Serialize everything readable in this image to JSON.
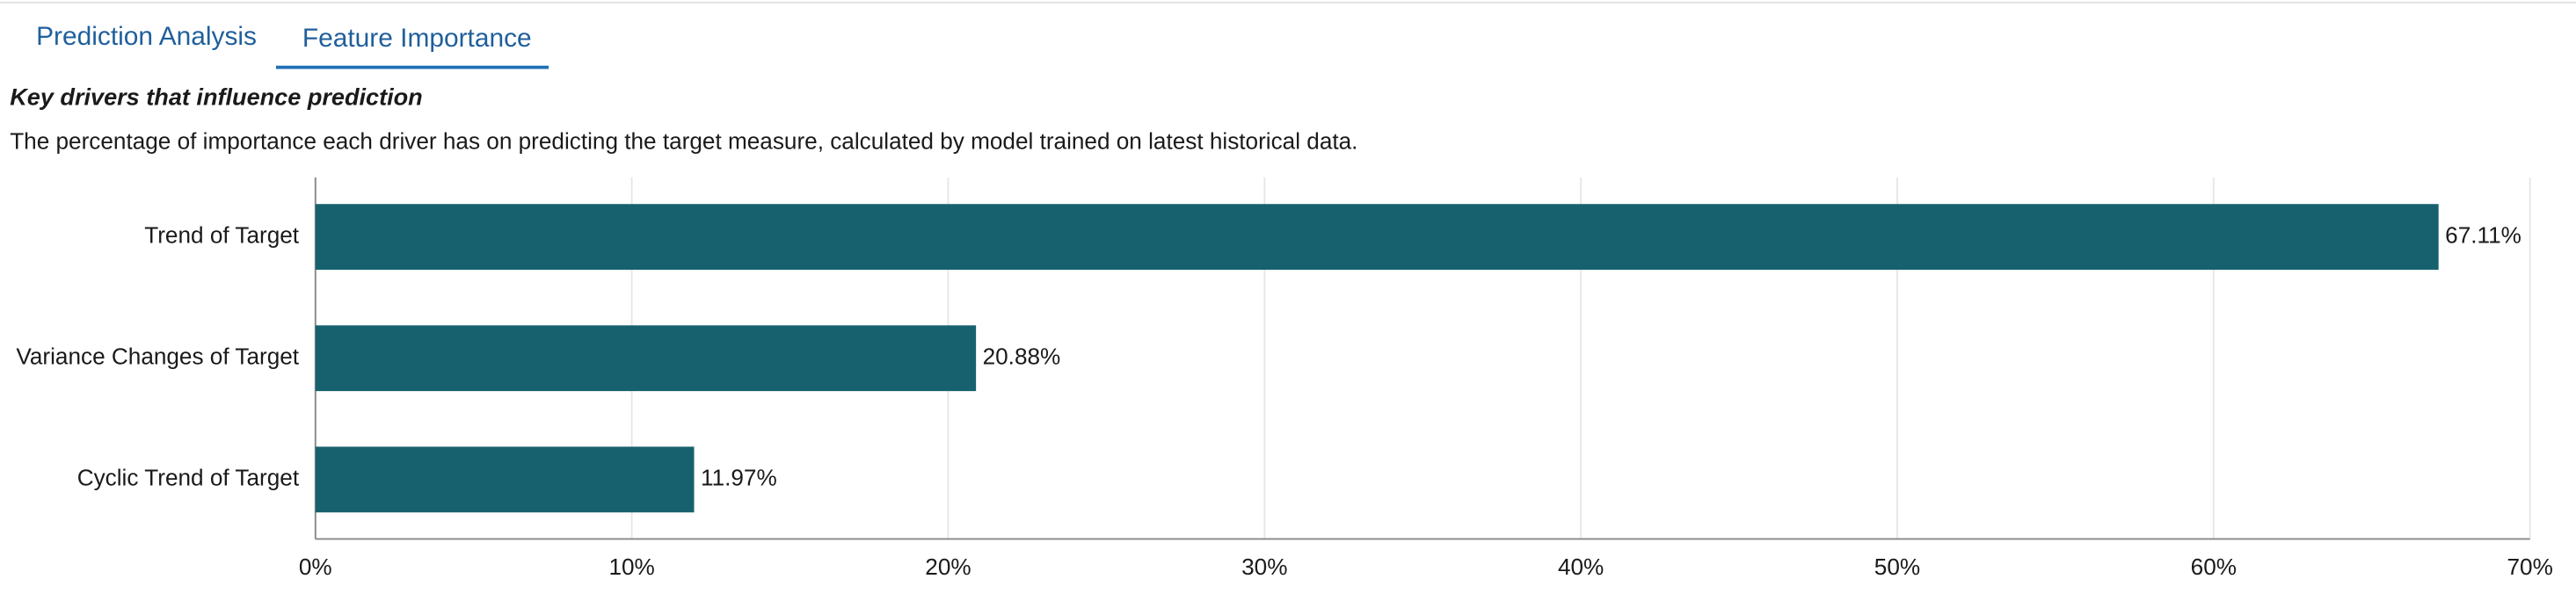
{
  "tabs": [
    "Prediction Analysis",
    "Feature Importance"
  ],
  "heading": "Key drivers that influence prediction",
  "description": "The percentage of importance each driver has on predicting the target measure, calculated by model trained on latest historical data.",
  "chart_data": {
    "type": "hbar",
    "categories": [
      "Trend of Target",
      "Variance Changes of Target",
      "Cyclic Trend of Target"
    ],
    "values": [
      67.11,
      20.88,
      11.97
    ],
    "value_labels": [
      "67.11%",
      "20.88%",
      "11.97%"
    ],
    "color": "#17616e",
    "xlim": [
      0,
      70
    ],
    "xticks": [
      {
        "value": 0,
        "label": "0%"
      },
      {
        "value": 10,
        "label": "10%"
      },
      {
        "value": 20,
        "label": "20%"
      },
      {
        "value": 30,
        "label": "30%"
      },
      {
        "value": 40,
        "label": "40%"
      },
      {
        "value": 50,
        "label": "50%"
      },
      {
        "value": 60,
        "label": "60%"
      },
      {
        "value": 70,
        "label": "70%"
      }
    ],
    "grid": true
  }
}
